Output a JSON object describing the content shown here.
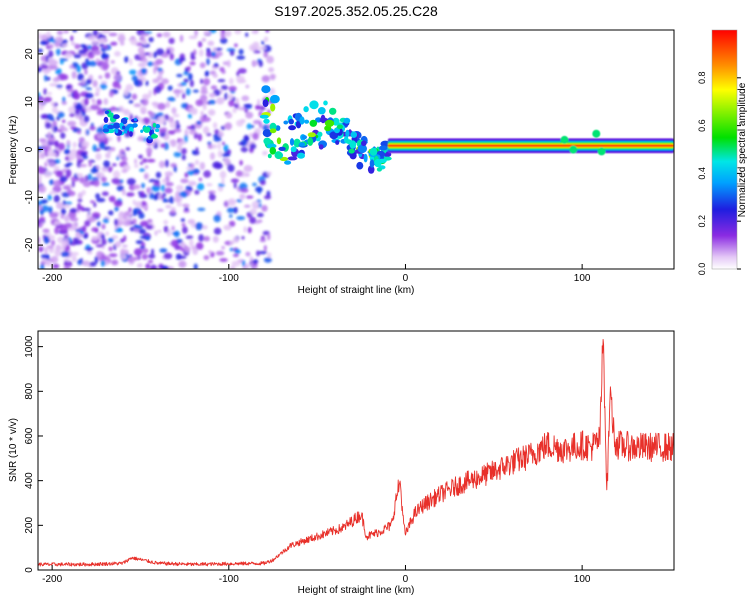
{
  "figure_title": "S197.2025.352.05.25.C28",
  "colors": {
    "snr_line": "#e8302a",
    "axis": "#000000",
    "background": "#ffffff"
  },
  "chart_data": [
    {
      "type": "heatmap",
      "title": "",
      "xlabel": "Height of straight line (km)",
      "ylabel": "Frequency (Hz)",
      "xlim": [
        -208,
        152
      ],
      "ylim": [
        -25,
        25
      ],
      "x_ticks": [
        -200,
        -100,
        0,
        100
      ],
      "y_ticks": [
        -20,
        -10,
        0,
        10,
        20
      ],
      "colorbar": {
        "label": "Normalized spectral amplitude",
        "range": [
          0,
          1
        ],
        "ticks": [
          0.0,
          0.2,
          0.4,
          0.6,
          0.8
        ],
        "tick_labels": [
          "0.0",
          "0.2",
          "0.4",
          "0.6",
          "0.8"
        ],
        "colormap": "rainbow (purple-blue-cyan-green-yellow-red)"
      },
      "features": [
        {
          "name": "scattered noise speckle",
          "x_range": [
            -208,
            -75
          ],
          "y_range": [
            -25,
            25
          ],
          "amplitude": [
            0.05,
            0.35
          ]
        },
        {
          "name": "early tonal segment",
          "x_range": [
            -170,
            -140
          ],
          "frequency": 6,
          "amplitude": 0.45
        },
        {
          "name": "unstable transition region",
          "x_range": [
            -80,
            -10
          ],
          "frequency_range": [
            -12,
            10
          ],
          "amplitude": [
            0.2,
            0.5
          ]
        },
        {
          "name": "stable tone near 0 Hz",
          "x_range": [
            -10,
            152
          ],
          "frequency": 0.8,
          "amplitude": 0.95
        }
      ]
    },
    {
      "type": "line",
      "title": "",
      "xlabel": "Height of straight line (km)",
      "ylabel": "SNR (10 * v/v)",
      "xlim": [
        -208,
        152
      ],
      "ylim": [
        0,
        1070
      ],
      "x_ticks": [
        -200,
        -100,
        0,
        100
      ],
      "y_ticks": [
        0,
        200,
        400,
        600,
        800,
        1000
      ],
      "series": [
        {
          "name": "SNR",
          "x": [
            -208,
            -180,
            -160,
            -155,
            -140,
            -120,
            -100,
            -80,
            -75,
            -65,
            -50,
            -35,
            -25,
            -22,
            -15,
            -8,
            -5,
            -3,
            -1,
            0,
            5,
            10,
            20,
            30,
            40,
            50,
            60,
            70,
            80,
            90,
            100,
            105,
            110,
            112,
            114,
            116,
            118,
            120,
            130,
            140,
            152
          ],
          "values": [
            25,
            25,
            30,
            55,
            30,
            25,
            28,
            30,
            45,
            110,
            150,
            190,
            250,
            150,
            170,
            200,
            330,
            400,
            200,
            160,
            250,
            290,
            340,
            380,
            410,
            440,
            480,
            510,
            560,
            540,
            560,
            550,
            580,
            1060,
            340,
            820,
            600,
            560,
            550,
            550,
            550
          ]
        }
      ]
    }
  ]
}
